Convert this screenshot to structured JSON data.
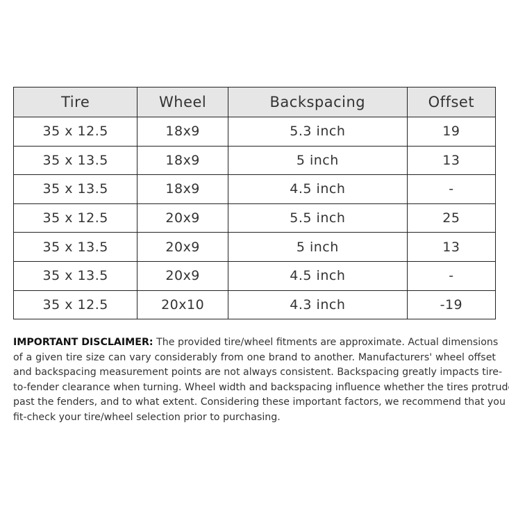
{
  "table": {
    "headers": [
      "Tire",
      "Wheel",
      "Backspacing",
      "Offset"
    ],
    "rows": [
      [
        "35 x 12.5",
        "18x9",
        "5.3 inch",
        "19"
      ],
      [
        "35 x 13.5",
        "18x9",
        "5 inch",
        "13"
      ],
      [
        "35 x 13.5",
        "18x9",
        "4.5 inch",
        "-"
      ],
      [
        "35 x 12.5",
        "20x9",
        "5.5 inch",
        "25"
      ],
      [
        "35 x 13.5",
        "20x9",
        "5 inch",
        "13"
      ],
      [
        "35 x 13.5",
        "20x9",
        "4.5 inch",
        "-"
      ],
      [
        "35 x 12.5",
        "20x10",
        "4.3 inch",
        "-19"
      ]
    ]
  },
  "disclaimer": {
    "label": "IMPORTANT DISCLAIMER:",
    "lines": [
      "The provided tire/wheel fitments are approximate. Actual dimensions",
      "of a given tire size can vary considerably from one brand to another. Manufacturers' wheel offset",
      "and backspacing measurement points are not always consistent. Backspacing greatly impacts tire-",
      "to-fender clearance when turning. Wheel width and backspacing influence whether the tires protrude",
      "past the fenders, and to what extent. Considering these important factors, we recommend that you",
      "fit-check your tire/wheel selection prior to purchasing."
    ]
  }
}
